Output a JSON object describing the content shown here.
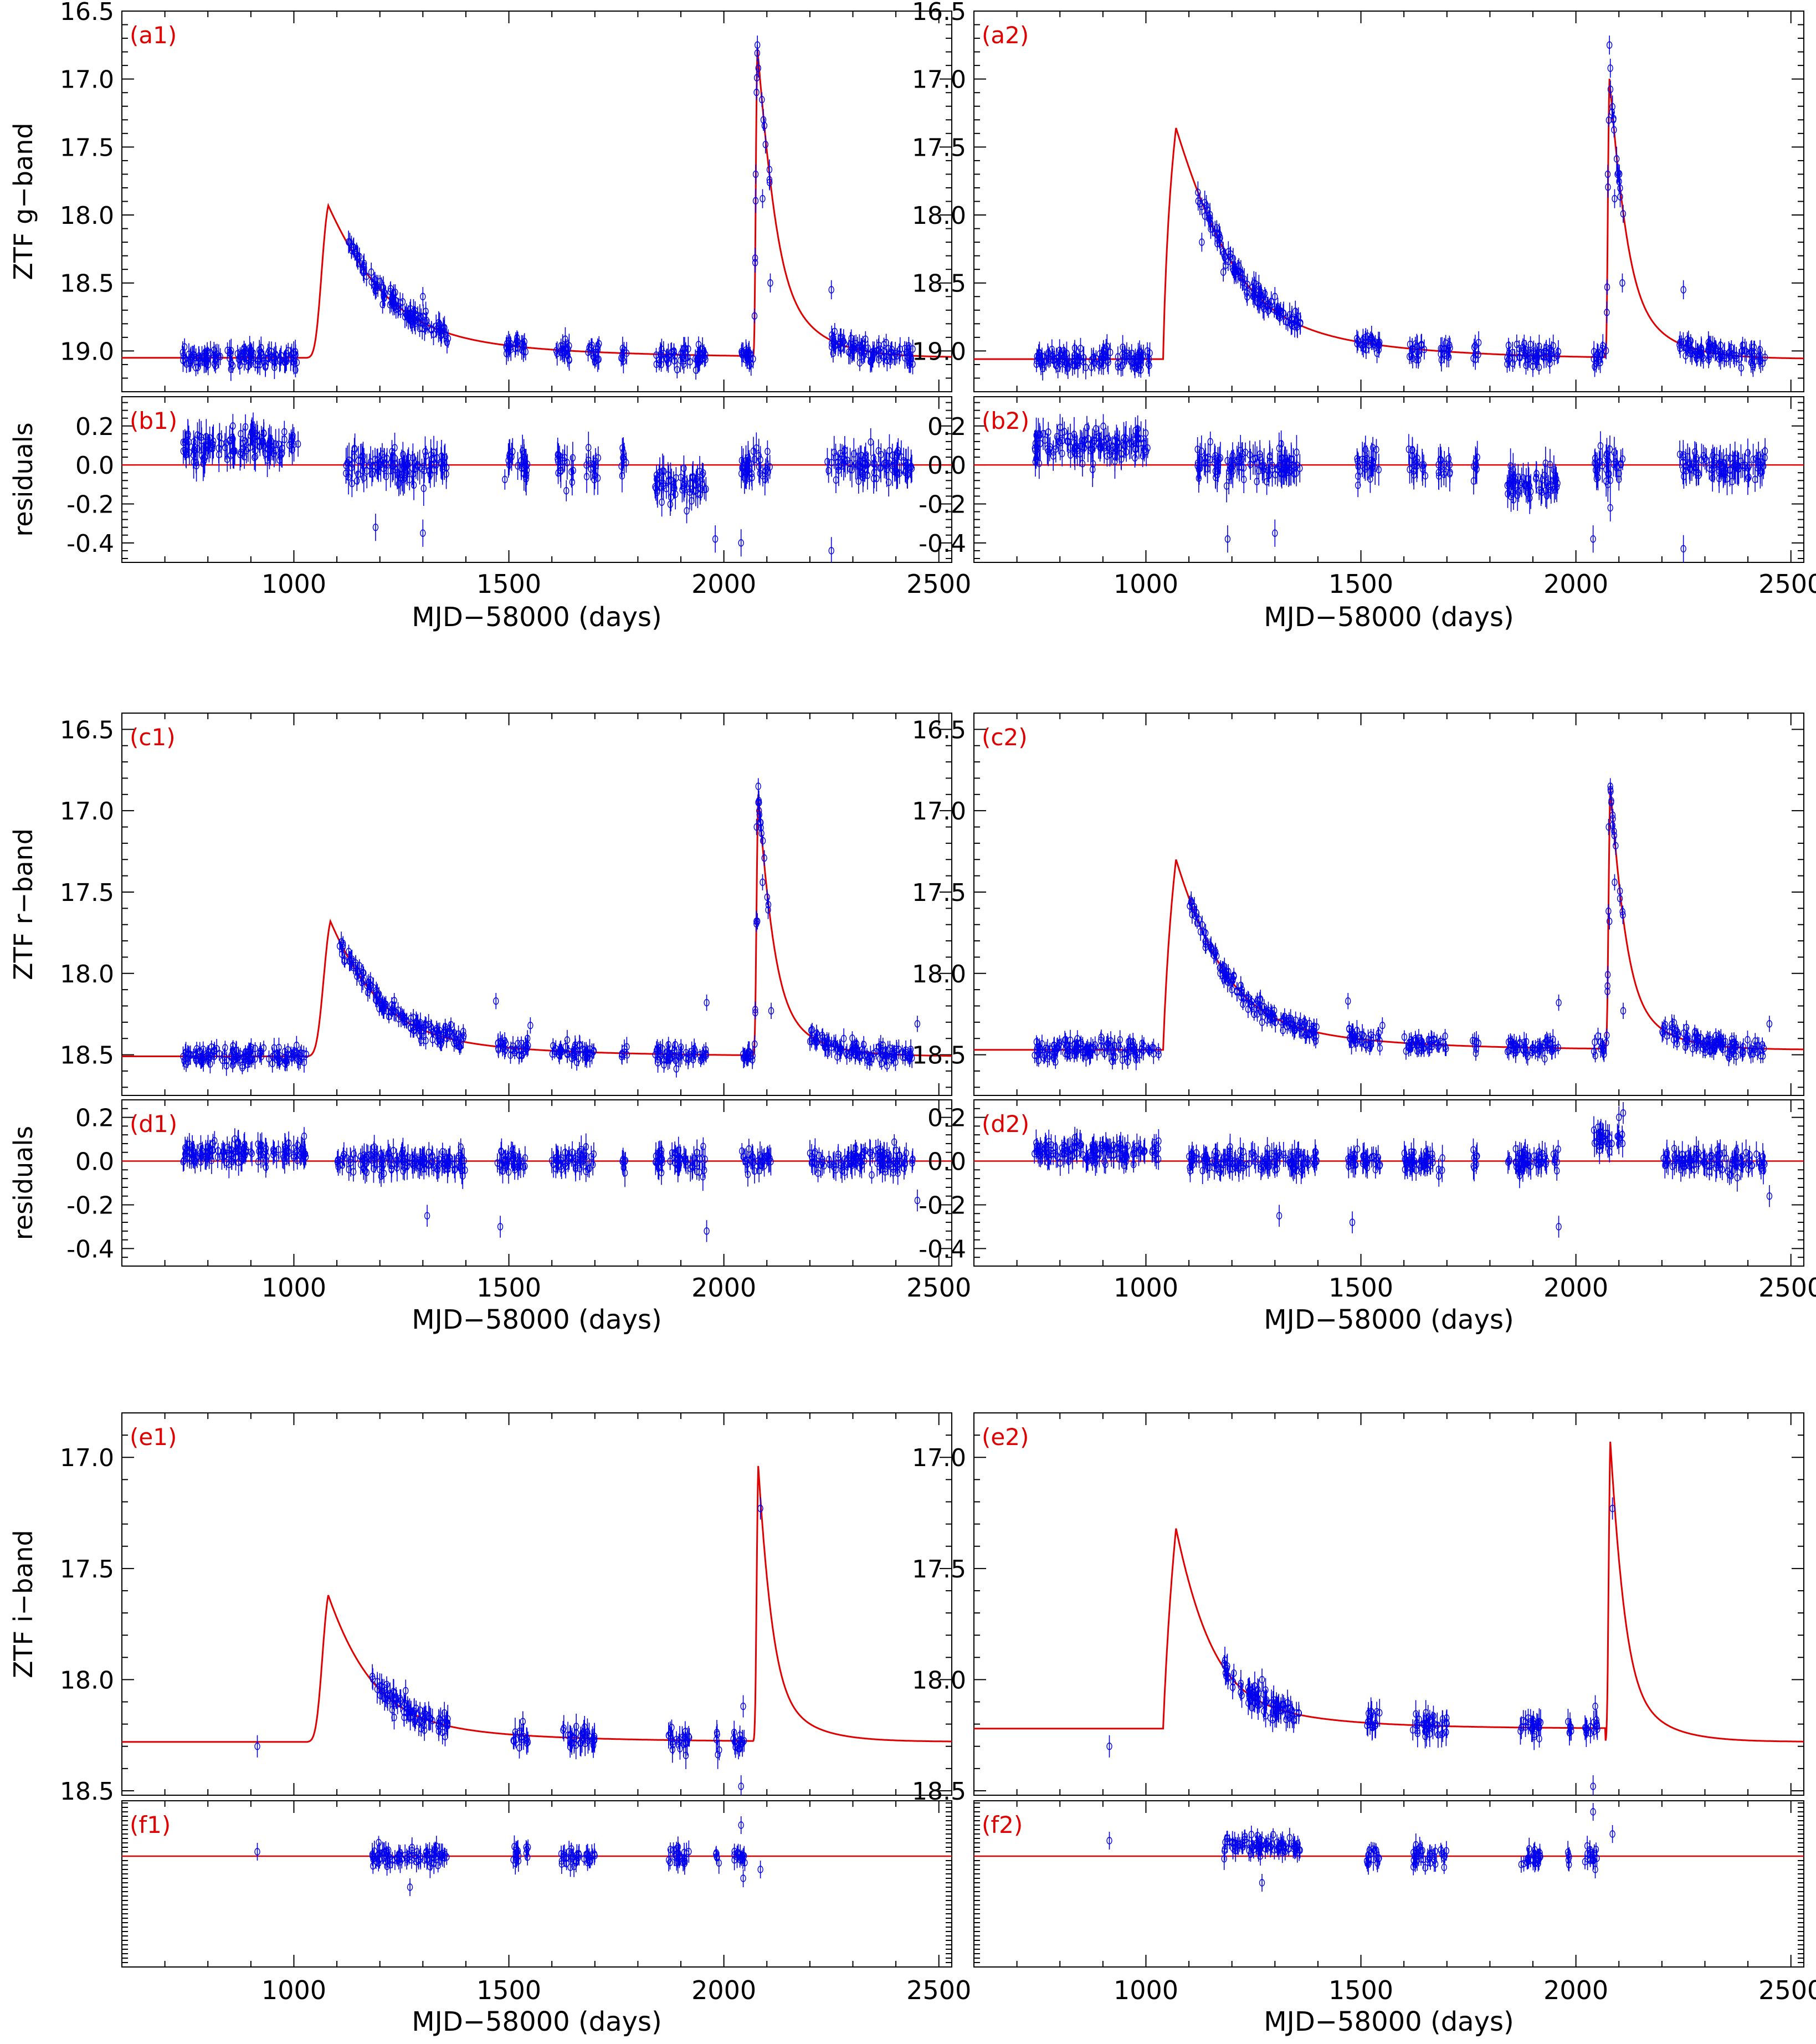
{
  "figure": {
    "x_label": "MJD−58000 (days)",
    "y_labels": {
      "g": "ZTF  g−band",
      "r": "ZTF  r−band",
      "i": "ZTF  i−band",
      "res": "residuals"
    }
  },
  "colors": {
    "model": "#e00000",
    "data": "#0000ee",
    "axis": "#000000",
    "panel_label": "#e00000"
  },
  "chart_data": [
    {
      "panel": "a1",
      "type": "scatter",
      "subtype": "light curve with model",
      "ylabel": "ZTF  g−band",
      "xlim": [
        600,
        2530
      ],
      "ylim": [
        19.3,
        16.5
      ],
      "y_inverted": true,
      "yticks": [
        16.5,
        17.0,
        17.5,
        18.0,
        18.5,
        19.0
      ],
      "model": {
        "base": 19.05,
        "peaks": [
          {
            "t0": 1030,
            "tp": 1080,
            "m": 17.93,
            "rise": "gauss",
            "decay": 90
          },
          {
            "t0": 2068,
            "tp": 2078,
            "m": 16.77,
            "rise": "gauss",
            "decay": 22
          }
        ]
      },
      "obs": {
        "seasons": [
          [
            740,
            1010
          ],
          [
            1120,
            1360
          ],
          [
            1490,
            1545
          ],
          [
            1610,
            1650
          ],
          [
            1680,
            1710
          ],
          [
            1760,
            1775
          ],
          [
            1840,
            1960
          ],
          [
            2040,
            2110
          ],
          [
            2240,
            2440
          ]
        ],
        "scatter": 0.09,
        "err": 0.07,
        "extra": [
          [
            2078,
            16.75
          ],
          [
            2080,
            16.92
          ],
          [
            2074,
            17.7
          ],
          [
            2090,
            17.88
          ],
          [
            2108,
            18.5
          ],
          [
            2250,
            18.55
          ],
          [
            1300,
            18.6
          ],
          [
            1180,
            18.42
          ],
          [
            1130,
            18.2
          ]
        ]
      }
    },
    {
      "panel": "b1",
      "type": "scatter",
      "subtype": "residuals",
      "ylabel": "residuals",
      "xlim": [
        600,
        2530
      ],
      "ylim": [
        -0.5,
        0.35
      ],
      "yticks": [
        -0.4,
        -0.2,
        0.0,
        0.2
      ],
      "zero_line": 0.0,
      "resid": {
        "season_offsets": [
          0.1,
          0.0,
          0.0,
          0.0,
          0.0,
          0.0,
          -0.1,
          0.0,
          0.0
        ],
        "scatter": 0.1,
        "err": 0.07,
        "extra": [
          [
            2040,
            -0.4
          ],
          [
            2250,
            -0.44
          ],
          [
            1300,
            -0.35
          ],
          [
            1190,
            -0.32
          ],
          [
            1980,
            -0.38
          ]
        ]
      }
    },
    {
      "panel": "a2",
      "type": "scatter",
      "subtype": "light curve with model",
      "ylabel": "",
      "xlim": [
        600,
        2530
      ],
      "ylim": [
        19.3,
        16.5
      ],
      "y_inverted": true,
      "yticks": [
        16.5,
        17.0,
        17.5,
        18.0,
        18.5,
        19.0
      ],
      "model": {
        "base": 19.06,
        "peaks": [
          {
            "t0": 1040,
            "tp": 1070,
            "m": 17.36,
            "rise": "linear",
            "decay": 75
          },
          {
            "t0": 2068,
            "tp": 2078,
            "m": 17.0,
            "rise": "gauss",
            "decay": 22
          }
        ]
      },
      "obs": {
        "seasons": [
          [
            740,
            1010
          ],
          [
            1120,
            1360
          ],
          [
            1490,
            1545
          ],
          [
            1610,
            1650
          ],
          [
            1680,
            1710
          ],
          [
            1760,
            1775
          ],
          [
            1840,
            1960
          ],
          [
            2040,
            2110
          ],
          [
            2240,
            2440
          ]
        ],
        "scatter": 0.09,
        "err": 0.07,
        "extra": [
          [
            2078,
            16.75
          ],
          [
            2080,
            16.92
          ],
          [
            2074,
            17.7
          ],
          [
            2090,
            17.88
          ],
          [
            2108,
            18.5
          ],
          [
            2250,
            18.55
          ],
          [
            1300,
            18.6
          ],
          [
            1180,
            18.42
          ],
          [
            1130,
            18.2
          ]
        ]
      }
    },
    {
      "panel": "b2",
      "type": "scatter",
      "subtype": "residuals",
      "ylabel": "",
      "xlim": [
        600,
        2530
      ],
      "ylim": [
        -0.5,
        0.35
      ],
      "yticks": [
        -0.4,
        -0.2,
        0.0,
        0.2
      ],
      "zero_line": 0.0,
      "resid": {
        "season_offsets": [
          0.1,
          0.0,
          0.0,
          0.0,
          0.0,
          0.0,
          -0.1,
          0.0,
          0.0
        ],
        "scatter": 0.1,
        "err": 0.07,
        "extra": [
          [
            2040,
            -0.38
          ],
          [
            2080,
            -0.22
          ],
          [
            2250,
            -0.43
          ],
          [
            1300,
            -0.35
          ],
          [
            1190,
            -0.38
          ]
        ]
      }
    },
    {
      "panel": "c1",
      "type": "scatter",
      "subtype": "light curve with model",
      "ylabel": "ZTF  r−band",
      "xlim": [
        600,
        2530
      ],
      "ylim": [
        18.75,
        16.4
      ],
      "y_inverted": true,
      "yticks": [
        16.5,
        17.0,
        17.5,
        18.0,
        18.5
      ],
      "model": {
        "base": 18.51,
        "peaks": [
          {
            "t0": 1030,
            "tp": 1085,
            "m": 17.68,
            "rise": "gauss",
            "decay": 85
          },
          {
            "t0": 2068,
            "tp": 2080,
            "m": 16.9,
            "rise": "gauss",
            "decay": 22
          }
        ]
      },
      "obs": {
        "seasons": [
          [
            740,
            1030
          ],
          [
            1100,
            1400
          ],
          [
            1470,
            1545
          ],
          [
            1600,
            1700
          ],
          [
            1760,
            1775
          ],
          [
            1840,
            1960
          ],
          [
            2040,
            2110
          ],
          [
            2200,
            2440
          ]
        ],
        "scatter": 0.07,
        "err": 0.05,
        "extra": [
          [
            2080,
            16.85
          ],
          [
            2082,
            16.95
          ],
          [
            2076,
            17.1
          ],
          [
            2078,
            17.68
          ],
          [
            2090,
            17.44
          ],
          [
            2110,
            18.23
          ],
          [
            1470,
            18.17
          ],
          [
            1550,
            18.32
          ],
          [
            1960,
            18.18
          ],
          [
            2450,
            18.31
          ]
        ]
      }
    },
    {
      "panel": "d1",
      "type": "scatter",
      "subtype": "residuals",
      "ylabel": "residuals",
      "xlim": [
        600,
        2530
      ],
      "ylim": [
        -0.48,
        0.28
      ],
      "yticks": [
        -0.4,
        -0.2,
        0.0,
        0.2
      ],
      "zero_line": 0.0,
      "resid": {
        "season_offsets": [
          0.04,
          0.0,
          0.0,
          0.0,
          0.0,
          0.0,
          0.0,
          0.0
        ],
        "scatter": 0.06,
        "err": 0.05,
        "extra": [
          [
            1480,
            -0.3
          ],
          [
            1960,
            -0.32
          ],
          [
            2450,
            -0.18
          ],
          [
            1310,
            -0.25
          ]
        ]
      }
    },
    {
      "panel": "c2",
      "type": "scatter",
      "subtype": "light curve with model",
      "ylabel": "",
      "xlim": [
        600,
        2530
      ],
      "ylim": [
        18.75,
        16.4
      ],
      "y_inverted": true,
      "yticks": [
        16.5,
        17.0,
        17.5,
        18.0,
        18.5
      ],
      "model": {
        "base": 18.47,
        "peaks": [
          {
            "t0": 1040,
            "tp": 1070,
            "m": 17.3,
            "rise": "linear",
            "decay": 75
          },
          {
            "t0": 2068,
            "tp": 2080,
            "m": 16.85,
            "rise": "gauss",
            "decay": 22
          }
        ]
      },
      "obs": {
        "seasons": [
          [
            740,
            1030
          ],
          [
            1100,
            1400
          ],
          [
            1470,
            1545
          ],
          [
            1600,
            1700
          ],
          [
            1760,
            1775
          ],
          [
            1840,
            1960
          ],
          [
            2040,
            2110
          ],
          [
            2200,
            2440
          ]
        ],
        "scatter": 0.07,
        "err": 0.05,
        "extra": [
          [
            2080,
            16.85
          ],
          [
            2082,
            16.95
          ],
          [
            2076,
            17.1
          ],
          [
            2078,
            17.68
          ],
          [
            2090,
            17.44
          ],
          [
            2110,
            18.23
          ],
          [
            1470,
            18.17
          ],
          [
            1550,
            18.32
          ],
          [
            1960,
            18.18
          ],
          [
            2450,
            18.31
          ]
        ]
      }
    },
    {
      "panel": "d2",
      "type": "scatter",
      "subtype": "residuals",
      "ylabel": "",
      "xlim": [
        600,
        2530
      ],
      "ylim": [
        -0.48,
        0.28
      ],
      "yticks": [
        -0.4,
        -0.2,
        0.0,
        0.2
      ],
      "zero_line": 0.0,
      "resid": {
        "season_offsets": [
          0.04,
          0.0,
          0.0,
          0.0,
          0.0,
          0.0,
          0.1,
          0.0
        ],
        "scatter": 0.06,
        "err": 0.05,
        "extra": [
          [
            1480,
            -0.28
          ],
          [
            1960,
            -0.3
          ],
          [
            2450,
            -0.16
          ],
          [
            1310,
            -0.25
          ],
          [
            2100,
            0.2
          ],
          [
            2110,
            0.22
          ]
        ]
      }
    },
    {
      "panel": "e1",
      "type": "scatter",
      "subtype": "light curve with model",
      "ylabel": "ZTF  i−band",
      "xlim": [
        600,
        2530
      ],
      "ylim": [
        18.52,
        16.8
      ],
      "y_inverted": true,
      "yticks": [
        17.0,
        17.5,
        18.0,
        18.5
      ],
      "model": {
        "base": 18.28,
        "peaks": [
          {
            "t0": 1030,
            "tp": 1080,
            "m": 17.62,
            "rise": "gauss",
            "decay": 80
          },
          {
            "t0": 2068,
            "tp": 2080,
            "m": 17.04,
            "rise": "gauss",
            "decay": 22
          }
        ]
      },
      "obs": {
        "seasons": [
          [
            1180,
            1360
          ],
          [
            1510,
            1545
          ],
          [
            1620,
            1700
          ],
          [
            1870,
            1920
          ],
          [
            1980,
            1990
          ],
          [
            2020,
            2050
          ]
        ],
        "scatter": 0.06,
        "err": 0.05,
        "extra": [
          [
            915,
            18.3
          ],
          [
            2085,
            17.23
          ],
          [
            2040,
            18.48
          ],
          [
            2045,
            18.12
          ],
          [
            1260,
            18.05
          ],
          [
            1350,
            18.15
          ]
        ]
      }
    },
    {
      "panel": "f1",
      "type": "scatter",
      "subtype": "residuals",
      "ylabel": "",
      "xlim": [
        600,
        2530
      ],
      "ylim": [
        -0.5,
        0.25
      ],
      "yticks": [],
      "zero_line": 0.0,
      "resid": {
        "season_offsets": [
          0.0,
          0.0,
          0.0,
          0.0,
          0.0,
          0.0
        ],
        "scatter": 0.05,
        "err": 0.04,
        "extra": [
          [
            915,
            0.02
          ],
          [
            2085,
            -0.06
          ],
          [
            2040,
            0.14
          ],
          [
            2045,
            -0.1
          ],
          [
            1270,
            -0.14
          ]
        ]
      }
    },
    {
      "panel": "e2",
      "type": "scatter",
      "subtype": "light curve with model",
      "ylabel": "",
      "xlim": [
        600,
        2530
      ],
      "ylim": [
        18.52,
        16.8
      ],
      "y_inverted": true,
      "yticks": [
        17.0,
        17.5,
        18.0,
        18.5
      ],
      "model": {
        "base": 18.22,
        "base_after": 18.28,
        "peaks": [
          {
            "t0": 1040,
            "tp": 1070,
            "m": 17.32,
            "rise": "linear",
            "decay": 60
          },
          {
            "t0": 2068,
            "tp": 2080,
            "m": 16.87,
            "rise": "gauss",
            "decay": 22
          }
        ]
      },
      "obs": {
        "seasons": [
          [
            1180,
            1360
          ],
          [
            1510,
            1545
          ],
          [
            1620,
            1700
          ],
          [
            1870,
            1920
          ],
          [
            1980,
            1990
          ],
          [
            2020,
            2050
          ]
        ],
        "scatter": 0.06,
        "err": 0.05,
        "extra": [
          [
            915,
            18.3
          ],
          [
            2085,
            17.23
          ],
          [
            2040,
            18.48
          ],
          [
            2045,
            18.12
          ],
          [
            1270,
            18.0
          ],
          [
            1350,
            18.15
          ]
        ]
      }
    },
    {
      "panel": "f2",
      "type": "scatter",
      "subtype": "residuals",
      "ylabel": "",
      "xlim": [
        600,
        2530
      ],
      "ylim": [
        -0.5,
        0.25
      ],
      "yticks": [],
      "zero_line": 0.0,
      "resid": {
        "season_offsets": [
          0.05,
          0.0,
          0.0,
          0.0,
          0.0,
          0.0
        ],
        "scatter": 0.05,
        "err": 0.04,
        "extra": [
          [
            915,
            0.07
          ],
          [
            2085,
            0.1
          ],
          [
            2040,
            0.2
          ],
          [
            2045,
            -0.06
          ],
          [
            1270,
            -0.12
          ]
        ]
      }
    }
  ]
}
